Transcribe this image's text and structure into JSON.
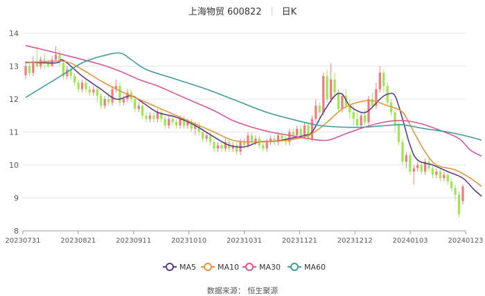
{
  "header": {
    "stock": "上海物贸 600822",
    "period": "日K"
  },
  "source": "数据来源： 恒生聚源",
  "chart_data": {
    "type": "candlestick",
    "title": "上海物贸 600822 日K",
    "ylim": [
      8,
      14
    ],
    "yticks": [
      "8",
      "9",
      "10",
      "11",
      "12",
      "13",
      "14"
    ],
    "xticks": [
      "20230731",
      "20230821",
      "20230911",
      "20231010",
      "20231031",
      "20231121",
      "20231212",
      "20240103",
      "20240123"
    ],
    "grid": true,
    "legend_position": "bottom",
    "colors": {
      "up": "#f07c82",
      "down": "#9ee84f",
      "MA5": "#5b3a8c",
      "MA10": "#e8923a",
      "MA30": "#d9559a",
      "MA60": "#3e9b9b"
    },
    "candles": [
      [
        12.72,
        13.0,
        13.15,
        12.6
      ],
      [
        13.0,
        12.8,
        13.1,
        12.7
      ],
      [
        12.8,
        13.15,
        13.3,
        12.7
      ],
      [
        13.15,
        13.0,
        13.6,
        12.95
      ],
      [
        13.0,
        13.2,
        13.3,
        12.9
      ],
      [
        13.2,
        13.1,
        13.4,
        12.9
      ],
      [
        13.1,
        13.0,
        13.2,
        12.95
      ],
      [
        13.0,
        13.2,
        13.3,
        13.0
      ],
      [
        13.2,
        13.35,
        13.6,
        13.15
      ],
      [
        13.35,
        13.1,
        13.5,
        13.0
      ],
      [
        13.1,
        12.7,
        13.2,
        12.6
      ],
      [
        12.7,
        12.9,
        13.0,
        12.6
      ],
      [
        12.9,
        12.7,
        13.0,
        12.6
      ],
      [
        12.7,
        12.5,
        12.8,
        12.4
      ],
      [
        12.5,
        12.3,
        12.6,
        12.2
      ],
      [
        12.3,
        12.5,
        12.6,
        12.2
      ],
      [
        12.5,
        12.3,
        12.6,
        12.2
      ],
      [
        12.3,
        12.2,
        12.4,
        12.1
      ],
      [
        12.2,
        12.3,
        12.4,
        12.1
      ],
      [
        12.3,
        12.1,
        12.4,
        11.9
      ],
      [
        12.1,
        11.8,
        12.2,
        11.7
      ],
      [
        11.8,
        12.0,
        12.1,
        11.7
      ],
      [
        12.0,
        11.9,
        12.2,
        11.8
      ],
      [
        11.9,
        12.3,
        12.4,
        11.8
      ],
      [
        12.3,
        12.4,
        12.6,
        12.2
      ],
      [
        12.4,
        11.9,
        12.5,
        11.8
      ],
      [
        11.9,
        12.0,
        12.1,
        11.8
      ],
      [
        12.0,
        12.2,
        12.3,
        11.9
      ],
      [
        12.2,
        12.0,
        12.3,
        11.9
      ],
      [
        12.0,
        11.7,
        12.1,
        11.6
      ],
      [
        11.7,
        11.8,
        11.9,
        11.6
      ],
      [
        11.8,
        11.5,
        11.9,
        11.4
      ],
      [
        11.5,
        11.4,
        11.6,
        11.3
      ],
      [
        11.4,
        11.5,
        11.6,
        11.3
      ],
      [
        11.5,
        11.4,
        11.6,
        11.3
      ],
      [
        11.4,
        11.6,
        11.7,
        11.3
      ],
      [
        11.6,
        11.4,
        11.7,
        11.3
      ],
      [
        11.4,
        11.2,
        11.5,
        11.1
      ],
      [
        11.2,
        11.4,
        11.5,
        11.1
      ],
      [
        11.4,
        11.3,
        11.5,
        11.2
      ],
      [
        11.3,
        11.2,
        11.4,
        11.1
      ],
      [
        11.2,
        11.4,
        11.5,
        11.1
      ],
      [
        11.4,
        11.2,
        11.5,
        11.1
      ],
      [
        11.2,
        11.3,
        11.4,
        11.1
      ],
      [
        11.3,
        11.1,
        11.4,
        11.0
      ],
      [
        11.1,
        11.2,
        11.3,
        10.9
      ],
      [
        11.2,
        11.0,
        11.3,
        10.9
      ],
      [
        11.0,
        10.8,
        11.1,
        10.7
      ],
      [
        10.8,
        10.9,
        11.0,
        10.7
      ],
      [
        10.9,
        10.7,
        11.0,
        10.6
      ],
      [
        10.7,
        10.5,
        10.8,
        10.4
      ],
      [
        10.5,
        10.6,
        10.7,
        10.4
      ],
      [
        10.6,
        10.5,
        10.7,
        10.4
      ],
      [
        10.5,
        10.7,
        10.8,
        10.4
      ],
      [
        10.7,
        10.5,
        10.8,
        10.4
      ],
      [
        10.5,
        10.6,
        10.7,
        10.4
      ],
      [
        10.6,
        10.4,
        10.7,
        10.3
      ],
      [
        10.4,
        10.7,
        10.8,
        10.3
      ],
      [
        10.7,
        10.6,
        10.8,
        10.5
      ],
      [
        10.6,
        10.9,
        11.0,
        10.5
      ],
      [
        10.9,
        10.7,
        11.0,
        10.6
      ],
      [
        10.7,
        10.8,
        10.9,
        10.6
      ],
      [
        10.8,
        10.6,
        10.9,
        10.5
      ],
      [
        10.6,
        10.5,
        10.7,
        10.4
      ],
      [
        10.5,
        10.7,
        10.8,
        10.4
      ],
      [
        10.7,
        10.8,
        10.9,
        10.6
      ],
      [
        10.8,
        10.7,
        10.9,
        10.6
      ],
      [
        10.7,
        10.9,
        11.0,
        10.6
      ],
      [
        10.9,
        10.8,
        11.0,
        10.7
      ],
      [
        10.8,
        10.7,
        10.9,
        10.6
      ],
      [
        10.7,
        11.0,
        11.1,
        10.6
      ],
      [
        11.0,
        10.9,
        11.1,
        10.8
      ],
      [
        10.9,
        11.1,
        11.2,
        10.8
      ],
      [
        11.1,
        10.9,
        11.2,
        10.8
      ],
      [
        10.9,
        11.2,
        11.3,
        10.8
      ],
      [
        11.2,
        10.8,
        11.3,
        10.7
      ],
      [
        10.8,
        11.4,
        11.5,
        10.7
      ],
      [
        11.4,
        11.8,
        12.0,
        11.3
      ],
      [
        11.8,
        11.6,
        11.9,
        11.4
      ],
      [
        11.6,
        12.7,
        12.8,
        11.5
      ],
      [
        12.7,
        12.0,
        12.9,
        11.9
      ],
      [
        12.0,
        12.6,
        13.1,
        11.9
      ],
      [
        12.6,
        12.2,
        12.8,
        12.0
      ],
      [
        12.2,
        11.7,
        12.3,
        11.6
      ],
      [
        11.7,
        12.1,
        12.2,
        11.6
      ],
      [
        12.1,
        11.8,
        12.3,
        11.7
      ],
      [
        11.8,
        11.6,
        12.0,
        11.4
      ],
      [
        11.6,
        11.4,
        11.8,
        11.2
      ],
      [
        11.4,
        11.2,
        11.6,
        11.1
      ],
      [
        11.2,
        11.5,
        11.6,
        11.1
      ],
      [
        11.5,
        11.3,
        11.7,
        11.2
      ],
      [
        11.3,
        12.0,
        12.1,
        11.2
      ],
      [
        12.0,
        11.8,
        12.2,
        11.7
      ],
      [
        11.8,
        12.3,
        12.5,
        11.7
      ],
      [
        12.3,
        12.8,
        13.0,
        12.2
      ],
      [
        12.8,
        12.4,
        12.9,
        12.2
      ],
      [
        12.4,
        11.9,
        12.5,
        11.8
      ],
      [
        11.9,
        11.6,
        12.0,
        11.5
      ],
      [
        11.6,
        11.2,
        11.7,
        11.0
      ],
      [
        11.2,
        10.7,
        11.3,
        10.6
      ],
      [
        10.7,
        10.1,
        10.8,
        10.0
      ],
      [
        10.1,
        10.3,
        10.4,
        9.9
      ],
      [
        10.3,
        9.8,
        10.4,
        9.7
      ],
      [
        9.8,
        9.9,
        10.0,
        9.4
      ],
      [
        9.9,
        10.0,
        10.1,
        9.8
      ],
      [
        10.0,
        9.8,
        10.1,
        9.7
      ],
      [
        9.8,
        10.1,
        10.2,
        9.7
      ],
      [
        10.1,
        9.9,
        10.2,
        9.8
      ],
      [
        9.9,
        9.7,
        10.0,
        9.6
      ],
      [
        9.7,
        9.8,
        9.9,
        9.6
      ],
      [
        9.8,
        9.6,
        9.9,
        9.5
      ],
      [
        9.6,
        9.7,
        9.8,
        9.5
      ],
      [
        9.7,
        9.5,
        9.8,
        9.4
      ],
      [
        9.5,
        9.3,
        9.6,
        9.2
      ],
      [
        9.3,
        9.1,
        9.4,
        8.9
      ],
      [
        9.1,
        8.5,
        9.2,
        8.4
      ],
      [
        8.9,
        9.35,
        9.4,
        8.8
      ]
    ],
    "series": [
      {
        "name": "MA5",
        "values": [
          [
            0,
            13.12
          ],
          [
            8,
            13.1
          ],
          [
            10,
            13.18
          ],
          [
            15,
            12.7
          ],
          [
            20,
            12.3
          ],
          [
            24,
            12.0
          ],
          [
            28,
            12.1
          ],
          [
            31,
            11.9
          ],
          [
            35,
            11.6
          ],
          [
            40,
            11.45
          ],
          [
            45,
            11.2
          ],
          [
            50,
            10.85
          ],
          [
            54,
            10.6
          ],
          [
            58,
            10.55
          ],
          [
            62,
            10.7
          ],
          [
            66,
            10.72
          ],
          [
            70,
            10.8
          ],
          [
            74,
            10.9
          ],
          [
            76,
            11.0
          ],
          [
            79,
            11.6
          ],
          [
            82,
            12.1
          ],
          [
            84,
            12.15
          ],
          [
            86,
            11.8
          ],
          [
            89,
            11.6
          ],
          [
            91,
            11.65
          ],
          [
            94,
            12.0
          ],
          [
            96,
            12.15
          ],
          [
            98,
            12.1
          ],
          [
            100,
            11.4
          ],
          [
            102,
            10.6
          ],
          [
            104,
            10.15
          ],
          [
            108,
            10.0
          ],
          [
            112,
            9.8
          ],
          [
            116,
            9.6
          ],
          [
            119,
            9.25
          ],
          [
            121,
            9.05
          ]
        ]
      },
      {
        "name": "MA10",
        "values": [
          [
            0,
            13.1
          ],
          [
            10,
            13.15
          ],
          [
            15,
            12.9
          ],
          [
            20,
            12.55
          ],
          [
            25,
            12.25
          ],
          [
            30,
            12.0
          ],
          [
            35,
            11.75
          ],
          [
            40,
            11.5
          ],
          [
            45,
            11.25
          ],
          [
            50,
            11.0
          ],
          [
            55,
            10.75
          ],
          [
            60,
            10.7
          ],
          [
            66,
            10.72
          ],
          [
            72,
            10.8
          ],
          [
            76,
            10.95
          ],
          [
            80,
            11.3
          ],
          [
            84,
            11.7
          ],
          [
            88,
            11.9
          ],
          [
            92,
            11.95
          ],
          [
            96,
            11.8
          ],
          [
            100,
            11.6
          ],
          [
            103,
            11.0
          ],
          [
            106,
            10.4
          ],
          [
            109,
            10.0
          ],
          [
            114,
            9.85
          ],
          [
            118,
            9.6
          ],
          [
            121,
            9.35
          ]
        ]
      },
      {
        "name": "MA30",
        "values": [
          [
            0,
            13.63
          ],
          [
            10,
            13.35
          ],
          [
            20,
            13.05
          ],
          [
            25,
            12.85
          ],
          [
            30,
            12.6
          ],
          [
            35,
            12.4
          ],
          [
            40,
            12.15
          ],
          [
            45,
            11.9
          ],
          [
            50,
            11.65
          ],
          [
            55,
            11.35
          ],
          [
            60,
            11.15
          ],
          [
            65,
            11.0
          ],
          [
            70,
            10.9
          ],
          [
            75,
            10.8
          ],
          [
            80,
            10.75
          ],
          [
            85,
            10.95
          ],
          [
            90,
            11.15
          ],
          [
            95,
            11.3
          ],
          [
            100,
            11.35
          ],
          [
            105,
            11.25
          ],
          [
            110,
            11.05
          ],
          [
            115,
            10.8
          ],
          [
            118,
            10.45
          ],
          [
            121,
            10.27
          ]
        ]
      },
      {
        "name": "MA60",
        "values": [
          [
            0,
            12.05
          ],
          [
            5,
            12.4
          ],
          [
            10,
            12.75
          ],
          [
            15,
            13.1
          ],
          [
            20,
            13.3
          ],
          [
            25,
            13.4
          ],
          [
            28,
            13.2
          ],
          [
            32,
            12.9
          ],
          [
            40,
            12.6
          ],
          [
            48,
            12.3
          ],
          [
            56,
            11.95
          ],
          [
            64,
            11.6
          ],
          [
            72,
            11.35
          ],
          [
            78,
            11.2
          ],
          [
            84,
            11.15
          ],
          [
            90,
            11.15
          ],
          [
            96,
            11.2
          ],
          [
            100,
            11.22
          ],
          [
            106,
            11.1
          ],
          [
            112,
            11.0
          ],
          [
            118,
            10.85
          ],
          [
            121,
            10.75
          ]
        ]
      }
    ]
  }
}
